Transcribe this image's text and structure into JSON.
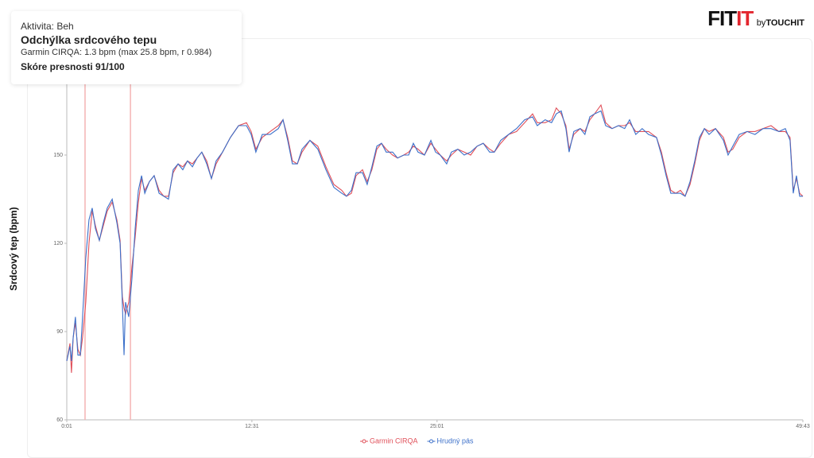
{
  "info": {
    "activity": "Aktivita: Beh",
    "title": "Odchýlka srdcového tepu",
    "detail": "Garmin CIRQA: 1.3 bpm  (max 25.8 bpm, r 0.984)",
    "score": "Skóre presnosti 91/100"
  },
  "logo": {
    "fit": "FIT",
    "it": "IT",
    "by": "by",
    "touchit": "TOUCHIT"
  },
  "chart_data": {
    "type": "line",
    "y_label": "Srdcový tep (bpm)",
    "xlim": [
      1,
      2983
    ],
    "ylim": [
      60,
      180
    ],
    "xticks": [
      {
        "value": 1,
        "label": "0:01"
      },
      {
        "value": 751,
        "label": "12:31"
      },
      {
        "value": 1501,
        "label": "25:01"
      },
      {
        "value": 2983,
        "label": "49:43"
      }
    ],
    "yticks": [
      60,
      90,
      120,
      150
    ],
    "highlight_x": [
      75,
      259
    ],
    "highlight_color": "#f4b4b4",
    "x": [
      1,
      14,
      20,
      27,
      36,
      46,
      56,
      65,
      78,
      91,
      104,
      117,
      133,
      149,
      165,
      185,
      204,
      217,
      226,
      233,
      239,
      252,
      265,
      278,
      291,
      304,
      317,
      336,
      355,
      375,
      394,
      413,
      432,
      452,
      471,
      490,
      510,
      529,
      548,
      568,
      587,
      606,
      632,
      664,
      697,
      729,
      748,
      767,
      793,
      825,
      858,
      877,
      896,
      915,
      935,
      954,
      986,
      1018,
      1051,
      1083,
      1115,
      1134,
      1154,
      1173,
      1199,
      1218,
      1237,
      1257,
      1276,
      1295,
      1321,
      1341,
      1366,
      1386,
      1405,
      1424,
      1450,
      1476,
      1495,
      1514,
      1540,
      1559,
      1585,
      1611,
      1637,
      1663,
      1688,
      1714,
      1733,
      1759,
      1791,
      1823,
      1856,
      1888,
      1907,
      1939,
      1965,
      1984,
      2004,
      2023,
      2036,
      2055,
      2081,
      2100,
      2120,
      2139,
      2165,
      2184,
      2210,
      2236,
      2261,
      2281,
      2306,
      2332,
      2358,
      2390,
      2410,
      2429,
      2448,
      2468,
      2487,
      2506,
      2526,
      2545,
      2564,
      2584,
      2603,
      2629,
      2661,
      2680,
      2699,
      2725,
      2757,
      2789,
      2822,
      2854,
      2886,
      2912,
      2931,
      2944,
      2957,
      2970,
      2983
    ],
    "series": [
      {
        "name": "Garmin CIRQA",
        "color": "#e0505a",
        "values": [
          80,
          86,
          76,
          88,
          93,
          84,
          82,
          88,
          100,
          120,
          131,
          126,
          121,
          126,
          131,
          134,
          128,
          121,
          102,
          98,
          96,
          100,
          112,
          122,
          134,
          142,
          138,
          141,
          143,
          138,
          136,
          136,
          144,
          147,
          146,
          148,
          147,
          149,
          151,
          148,
          142,
          147,
          151,
          156,
          160,
          161,
          158,
          152,
          156,
          158,
          160,
          162,
          156,
          148,
          147,
          151,
          155,
          153,
          146,
          140,
          138,
          136,
          137,
          143,
          145,
          141,
          145,
          152,
          154,
          152,
          150,
          149,
          150,
          151,
          153,
          152,
          150,
          154,
          152,
          150,
          148,
          150,
          152,
          151,
          150,
          153,
          154,
          152,
          151,
          154,
          157,
          158,
          161,
          164,
          161,
          161,
          162,
          166,
          164,
          160,
          152,
          157,
          159,
          158,
          162,
          164,
          167,
          161,
          159,
          160,
          160,
          161,
          158,
          158,
          158,
          156,
          151,
          144,
          138,
          137,
          138,
          136,
          140,
          147,
          155,
          159,
          158,
          159,
          156,
          151,
          152,
          156,
          158,
          158,
          159,
          160,
          158,
          158,
          156,
          138,
          142,
          137,
          136
        ]
      },
      {
        "name": "Hrudný pás",
        "color": "#3b6fc9",
        "values": [
          80,
          85,
          80,
          88,
          95,
          82,
          82,
          95,
          115,
          128,
          132,
          125,
          121,
          127,
          132,
          135,
          127,
          120,
          100,
          82,
          100,
          95,
          108,
          125,
          138,
          143,
          137,
          141,
          143,
          137,
          136,
          135,
          145,
          147,
          145,
          148,
          146,
          149,
          151,
          147,
          142,
          148,
          151,
          156,
          160,
          160,
          157,
          151,
          157,
          157,
          159,
          162,
          155,
          147,
          147,
          152,
          155,
          152,
          145,
          139,
          137,
          136,
          138,
          144,
          144,
          140,
          146,
          153,
          154,
          151,
          151,
          149,
          150,
          150,
          154,
          151,
          150,
          155,
          151,
          150,
          147,
          151,
          152,
          150,
          151,
          153,
          154,
          151,
          151,
          155,
          157,
          159,
          162,
          163,
          160,
          162,
          161,
          164,
          165,
          159,
          151,
          158,
          159,
          157,
          163,
          164,
          165,
          160,
          159,
          160,
          159,
          162,
          157,
          159,
          157,
          156,
          150,
          143,
          137,
          137,
          137,
          136,
          141,
          148,
          156,
          159,
          157,
          159,
          155,
          150,
          153,
          157,
          158,
          157,
          159,
          159,
          158,
          159,
          155,
          137,
          143,
          136,
          136
        ]
      }
    ]
  }
}
